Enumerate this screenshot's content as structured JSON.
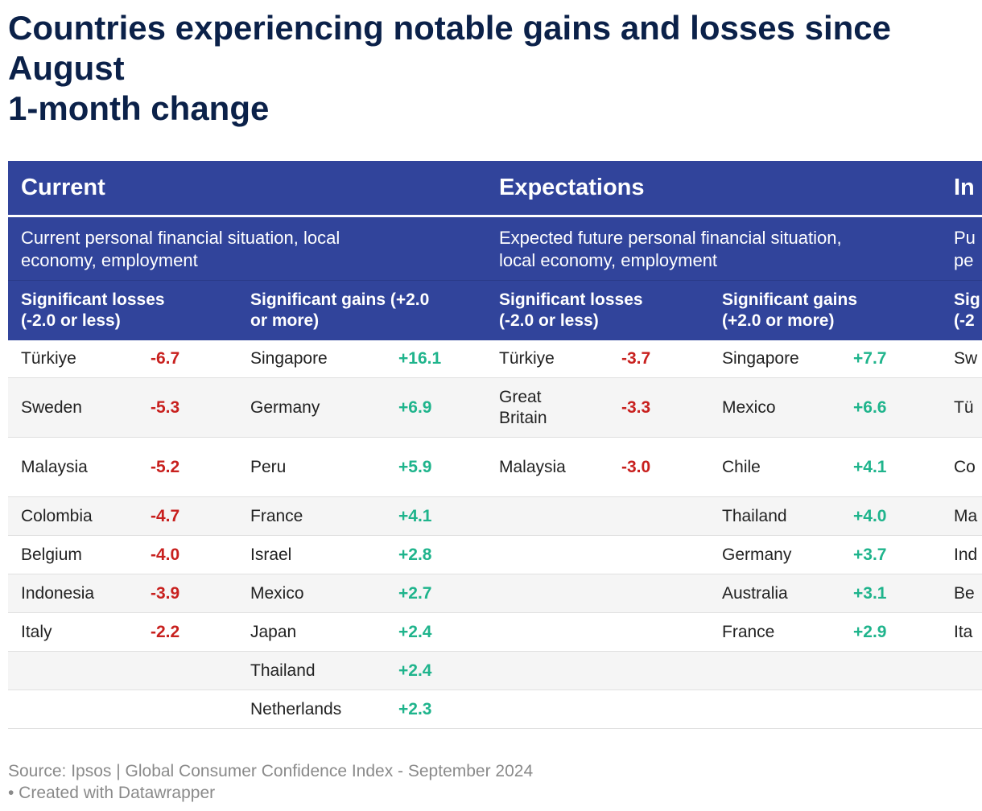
{
  "title": {
    "line1": "Countries experiencing notable gains and losses since",
    "line2": "August",
    "line3": "1-month change"
  },
  "sections": [
    {
      "name": "Current",
      "description_l1": "Current personal financial situation, local",
      "description_l2": "economy, employment",
      "losses_header_l1": "Significant losses",
      "losses_header_l2": "(-2.0 or less)",
      "gains_header_l1": "Significant gains (+2.0",
      "gains_header_l2": "or more)"
    },
    {
      "name": "Expectations",
      "description_l1": "Expected future personal financial situation,",
      "description_l2": "local economy, employment",
      "losses_header_l1": "Significant losses",
      "losses_header_l2": "(-2.0 or less)",
      "gains_header_l1": "Significant gains",
      "gains_header_l2": "(+2.0 or more)"
    },
    {
      "name": "In",
      "description_l1": "Pu",
      "description_l2": "pe",
      "losses_header_l1": "Sig",
      "losses_header_l2": "(-2"
    }
  ],
  "chart_data": {
    "type": "table",
    "columns": [
      "Current – Significant losses",
      "Current – Significant gains",
      "Expectations – Significant losses",
      "Expectations – Significant gains",
      "In (truncated)"
    ],
    "rows": [
      {
        "c_loss_country": "Türkiye",
        "c_loss_value": "-6.7",
        "c_gain_country": "Singapore",
        "c_gain_value": "+16.1",
        "e_loss_country": "Türkiye",
        "e_loss_value": "-3.7",
        "e_gain_country": "Singapore",
        "e_gain_value": "+7.7",
        "i_country": "Sw"
      },
      {
        "c_loss_country": "Sweden",
        "c_loss_value": "-5.3",
        "c_gain_country": "Germany",
        "c_gain_value": "+6.9",
        "e_loss_country_l1": "Great",
        "e_loss_country_l2": "Britain",
        "e_loss_value": "-3.3",
        "e_gain_country": "Mexico",
        "e_gain_value": "+6.6",
        "i_country": "Tü"
      },
      {
        "c_loss_country": "Malaysia",
        "c_loss_value": "-5.2",
        "c_gain_country": "Peru",
        "c_gain_value": "+5.9",
        "e_loss_country": "Malaysia",
        "e_loss_value": "-3.0",
        "e_gain_country": "Chile",
        "e_gain_value": "+4.1",
        "i_country": "Co"
      },
      {
        "c_loss_country": "Colombia",
        "c_loss_value": "-4.7",
        "c_gain_country": "France",
        "c_gain_value": "+4.1",
        "e_gain_country": "Thailand",
        "e_gain_value": "+4.0",
        "i_country": "Ma"
      },
      {
        "c_loss_country": "Belgium",
        "c_loss_value": "-4.0",
        "c_gain_country": "Israel",
        "c_gain_value": "+2.8",
        "e_gain_country": "Germany",
        "e_gain_value": "+3.7",
        "i_country": "Ind"
      },
      {
        "c_loss_country": "Indonesia",
        "c_loss_value": "-3.9",
        "c_gain_country": "Mexico",
        "c_gain_value": "+2.7",
        "e_gain_country": "Australia",
        "e_gain_value": "+3.1",
        "i_country": "Be"
      },
      {
        "c_loss_country": "Italy",
        "c_loss_value": "-2.2",
        "c_gain_country": "Japan",
        "c_gain_value": "+2.4",
        "e_gain_country": "France",
        "e_gain_value": "+2.9",
        "i_country": "Ita"
      },
      {
        "c_gain_country": "Thailand",
        "c_gain_value": "+2.4"
      },
      {
        "c_gain_country": "Netherlands",
        "c_gain_value": "+2.3"
      }
    ]
  },
  "footer": {
    "source": "Source: Ipsos | Global Consumer Confidence Index - September 2024",
    "credit": " • Created with Datawrapper"
  },
  "colors": {
    "header_bg": "#31449b",
    "title": "#0b2149",
    "negative": "#c8201e",
    "positive": "#1fb48c"
  }
}
